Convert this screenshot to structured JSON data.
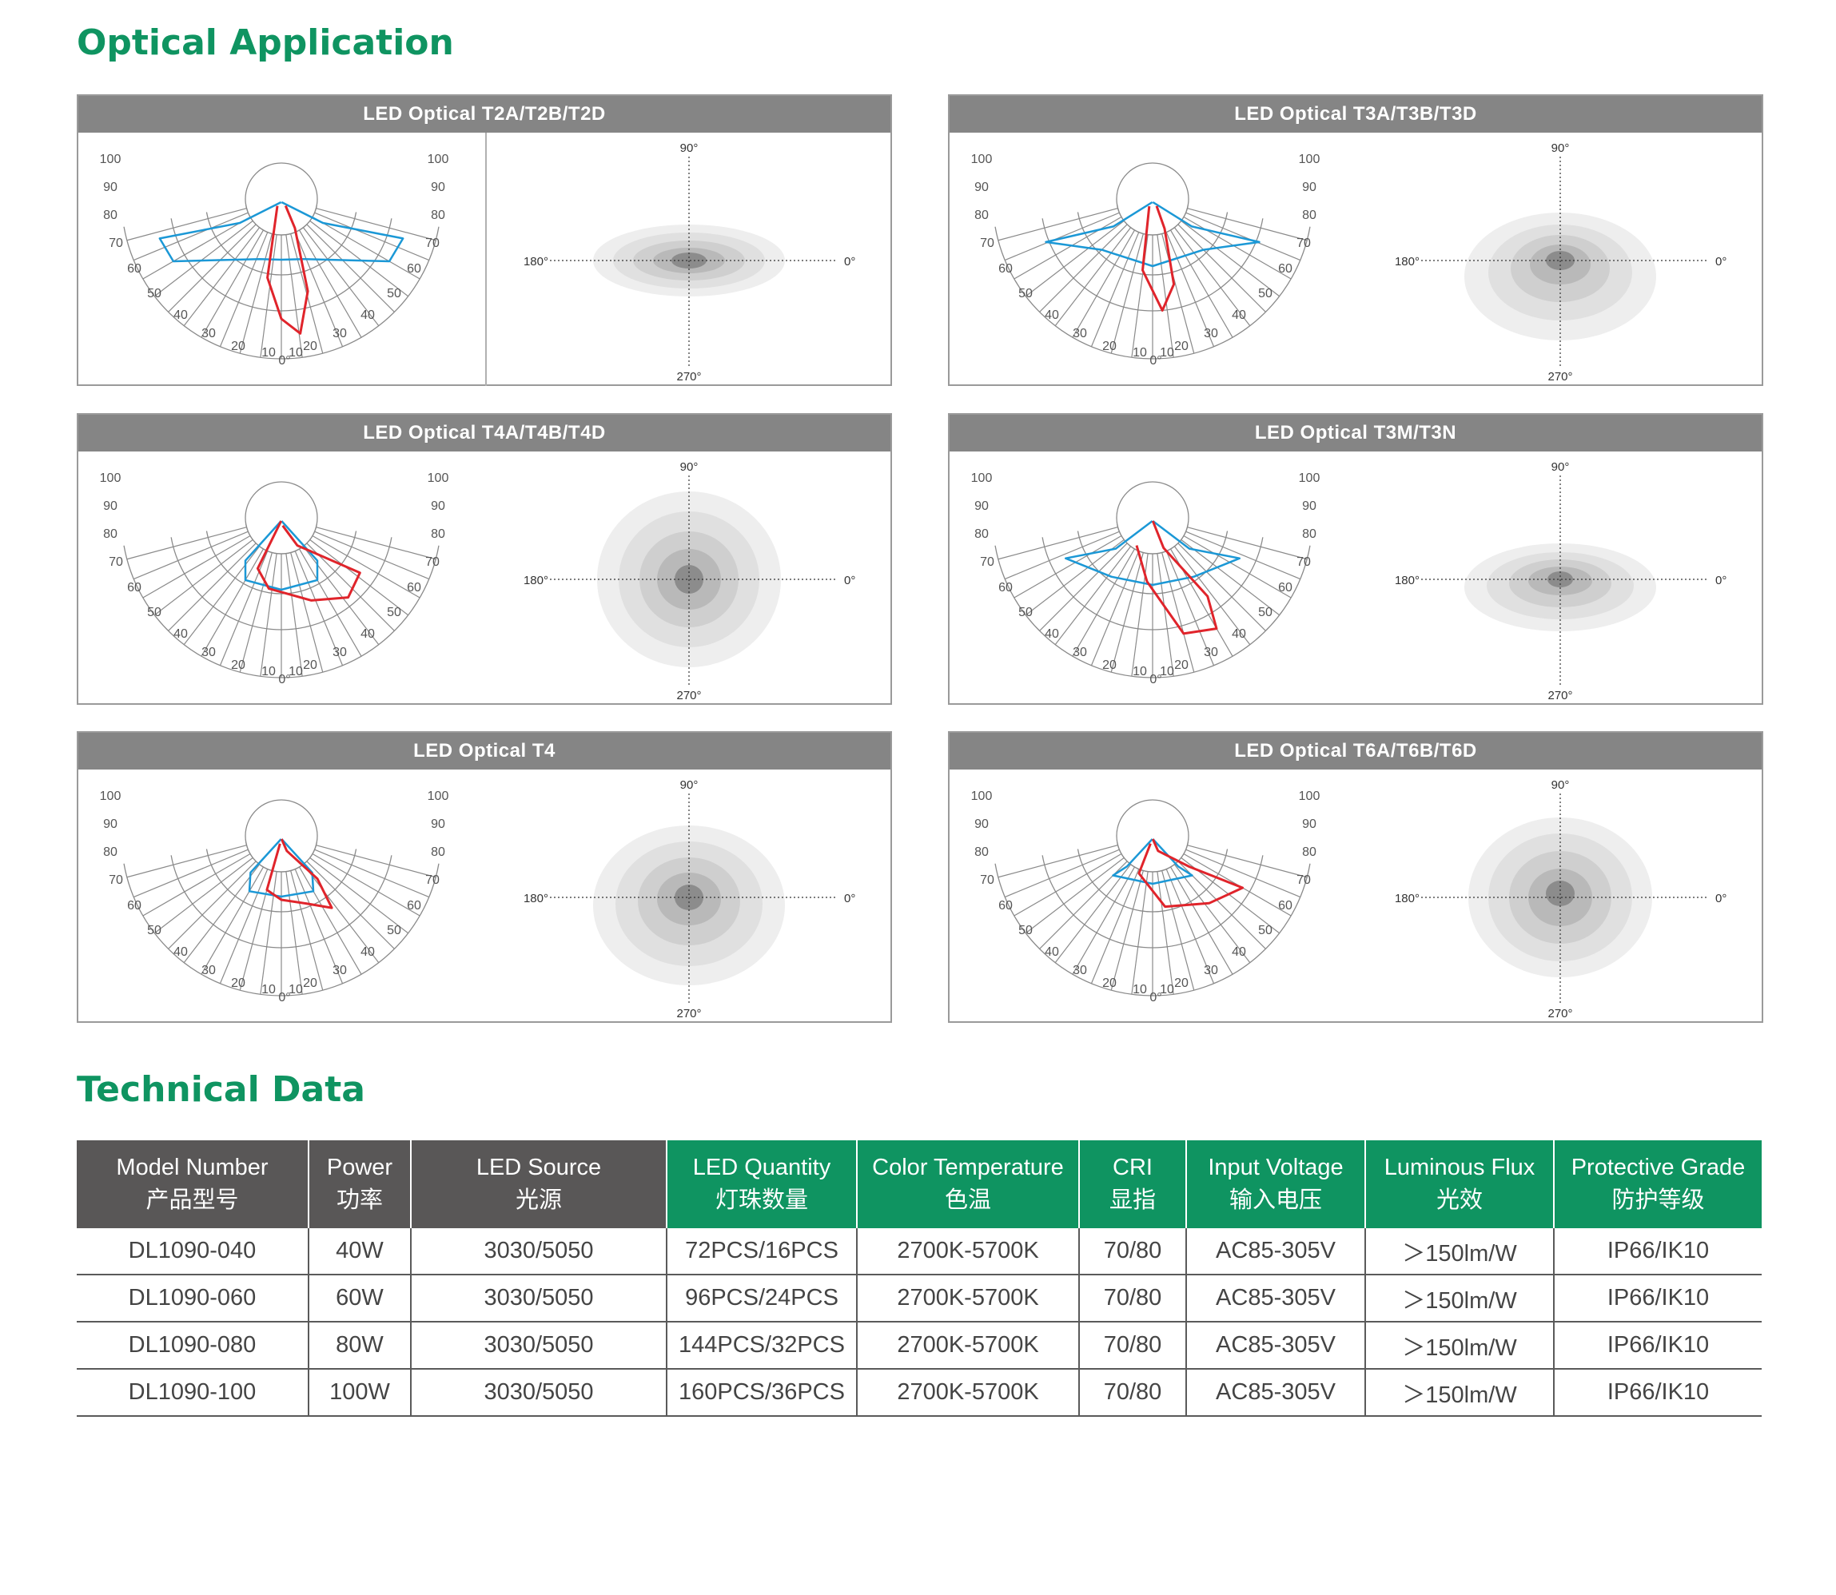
{
  "headings": {
    "optical": "Optical Application",
    "technical": "Technical Data"
  },
  "colors": {
    "brand_green": "#0f9461",
    "panel_header": "#858585",
    "table_dark": "#595757",
    "curve_red": "#e0242b",
    "curve_blue": "#1b98d6"
  },
  "polar": {
    "left_labels": [
      "100",
      "90",
      "80",
      "70",
      "60",
      "50",
      "40",
      "30",
      "20",
      "10"
    ],
    "right_labels": [
      "100",
      "90",
      "80",
      "70",
      "60",
      "50",
      "40",
      "30",
      "20",
      "10"
    ],
    "bottom_label": "0°"
  },
  "isolux": {
    "top": "90°",
    "bottom": "270°",
    "left": "180°",
    "right": "0°"
  },
  "optics": [
    {
      "title": "LED Optical T2A/T2B/T2D"
    },
    {
      "title": "LED Optical T3A/T3B/T3D"
    },
    {
      "title": "LED Optical T4A/T4B/T4D"
    },
    {
      "title": "LED Optical T3M/T3N"
    },
    {
      "title": "LED Optical T4"
    },
    {
      "title": "LED Optical T6A/T6B/T6D"
    }
  ],
  "table": {
    "headers": [
      {
        "en": "Model Number",
        "cn": "产品型号"
      },
      {
        "en": "Power",
        "cn": "功率"
      },
      {
        "en": "LED Source",
        "cn": "光源"
      },
      {
        "en": "LED Quantity",
        "cn": "灯珠数量"
      },
      {
        "en": "Color Temperature",
        "cn": "色温"
      },
      {
        "en": "CRI",
        "cn": "显指"
      },
      {
        "en": "Input Voltage",
        "cn": "输入电压"
      },
      {
        "en": "Luminous Flux",
        "cn": "光效"
      },
      {
        "en": "Protective Grade",
        "cn": "防护等级"
      }
    ],
    "rows": [
      [
        "DL1090-040",
        "40W",
        "3030/5050",
        "72PCS/16PCS",
        "2700K-5700K",
        "70/80",
        "AC85-305V",
        "＞150lm/W",
        "IP66/IK10"
      ],
      [
        "DL1090-060",
        "60W",
        "3030/5050",
        "96PCS/24PCS",
        "2700K-5700K",
        "70/80",
        "AC85-305V",
        "＞150lm/W",
        "IP66/IK10"
      ],
      [
        "DL1090-080",
        "80W",
        "3030/5050",
        "144PCS/32PCS",
        "2700K-5700K",
        "70/80",
        "AC85-305V",
        "＞150lm/W",
        "IP66/IK10"
      ],
      [
        "DL1090-100",
        "100W",
        "3030/5050",
        "160PCS/36PCS",
        "2700K-5700K",
        "70/80",
        "AC85-305V",
        "＞150lm/W",
        "IP66/IK10"
      ]
    ]
  }
}
